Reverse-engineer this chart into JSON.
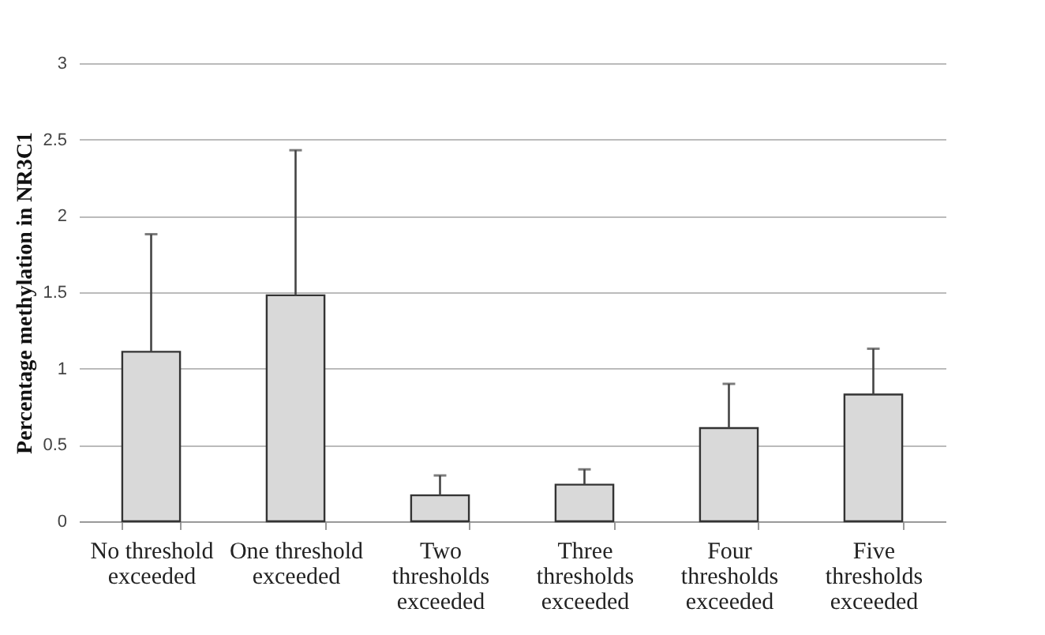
{
  "chart_data": {
    "type": "bar",
    "ylabel": "Percentage methylation in NR3C1",
    "categories": [
      "No threshold exceeded",
      "One threshold exceeded",
      "Two thresholds exceeded",
      "Three thresholds exceeded",
      "Four thresholds exceeded",
      "Five thresholds exceeded"
    ],
    "values": [
      1.11,
      1.48,
      0.17,
      0.24,
      0.61,
      0.83
    ],
    "errors": [
      [
        1.11,
        1.88
      ],
      [
        1.48,
        2.43
      ],
      [
        0.17,
        0.3
      ],
      [
        0.24,
        0.34
      ],
      [
        0.61,
        0.9
      ],
      [
        0.83,
        1.13
      ]
    ],
    "color": "#d9d9d9",
    "ylim": [
      0,
      3
    ],
    "yticks": [
      0,
      0.5,
      1,
      1.5,
      2,
      2.5,
      3
    ],
    "grid": "y"
  }
}
